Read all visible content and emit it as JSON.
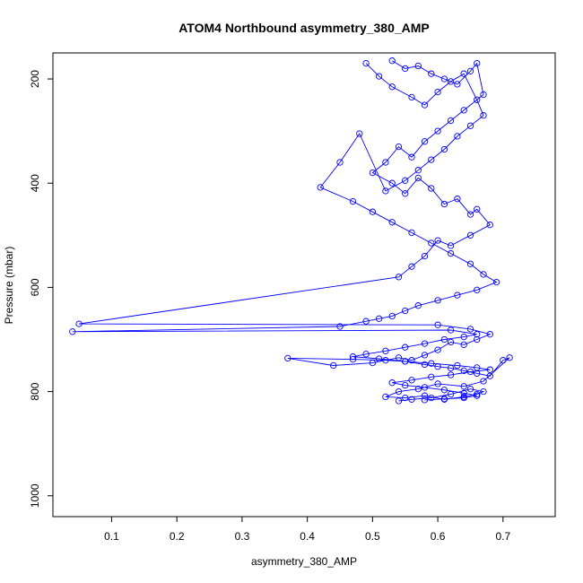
{
  "chart_data": {
    "type": "scatter",
    "title": "ATOM4 Northbound asymmetry_380_AMP",
    "xlabel": "asymmetry_380_AMP",
    "ylabel": "Pressure (mbar)",
    "xlim": [
      0.01,
      0.78
    ],
    "ylim": [
      1040,
      150
    ],
    "y_axis_inverted": true,
    "x_ticks": [
      0.1,
      0.2,
      0.3,
      0.4,
      0.5,
      0.6,
      0.7
    ],
    "x_tick_labels": [
      "0.1",
      "0.2",
      "0.3",
      "0.4",
      "0.5",
      "0.6",
      "0.7"
    ],
    "y_ticks": [
      200,
      400,
      600,
      800,
      1000
    ],
    "y_tick_labels": [
      "200",
      "400",
      "600",
      "800",
      "1000"
    ],
    "grid": false,
    "legend": "none",
    "marker": "open-circle",
    "connected": true,
    "color": "#0000ff",
    "series": [
      {
        "x": [
          0.53,
          0.55,
          0.57,
          0.59,
          0.61,
          0.63,
          0.65,
          0.66,
          0.67,
          0.64,
          0.62,
          0.6,
          0.58,
          0.56,
          0.54,
          0.52,
          0.5,
          0.53,
          0.55,
          0.57,
          0.59,
          0.61,
          0.63,
          0.65,
          0.66,
          0.68,
          0.65,
          0.62,
          0.6,
          0.58,
          0.56,
          0.54,
          0.05,
          0.6,
          0.65,
          0.68,
          0.66,
          0.64,
          0.62,
          0.6,
          0.58,
          0.56,
          0.54,
          0.5,
          0.44,
          0.37,
          0.47,
          0.52,
          0.55,
          0.58,
          0.6,
          0.62,
          0.64,
          0.66,
          0.68,
          0.7,
          0.71,
          0.67,
          0.64,
          0.6,
          0.57,
          0.54,
          0.52,
          0.55,
          0.58,
          0.61,
          0.64,
          0.66,
          0.67,
          0.65,
          0.62,
          0.59,
          0.56,
          0.54
        ],
        "y": [
          165,
          180,
          175,
          190,
          200,
          210,
          185,
          170,
          230,
          260,
          280,
          300,
          320,
          350,
          330,
          360,
          380,
          400,
          420,
          390,
          410,
          440,
          430,
          460,
          450,
          480,
          500,
          520,
          510,
          540,
          560,
          580,
          670,
          672,
          680,
          690,
          700,
          710,
          705,
          720,
          730,
          740,
          735,
          745,
          750,
          736,
          738,
          740,
          742,
          748,
          752,
          755,
          760,
          765,
          770,
          740,
          735,
          780,
          790,
          785,
          795,
          800,
          810,
          812,
          808,
          815,
          810,
          805,
          800,
          795,
          805,
          812,
          815,
          818
        ]
      },
      {
        "x": [
          0.49,
          0.51,
          0.53,
          0.56,
          0.58,
          0.6,
          0.62,
          0.64,
          0.66,
          0.67,
          0.65,
          0.63,
          0.61,
          0.59,
          0.57,
          0.55,
          0.52,
          0.48,
          0.45,
          0.42,
          0.47,
          0.5,
          0.53,
          0.56,
          0.59,
          0.62,
          0.65,
          0.67,
          0.69,
          0.66,
          0.63,
          0.6,
          0.57,
          0.55,
          0.53,
          0.51,
          0.49,
          0.45,
          0.04,
          0.62,
          0.66,
          0.64,
          0.61,
          0.58,
          0.55,
          0.52,
          0.49,
          0.47,
          0.51,
          0.55,
          0.59,
          0.63,
          0.66,
          0.68,
          0.65,
          0.62,
          0.59,
          0.56,
          0.53,
          0.55,
          0.58,
          0.61,
          0.64,
          0.66,
          0.64,
          0.61,
          0.58
        ],
        "y": [
          170,
          195,
          215,
          235,
          250,
          225,
          205,
          190,
          240,
          270,
          290,
          310,
          335,
          355,
          375,
          395,
          415,
          305,
          360,
          408,
          435,
          455,
          475,
          495,
          515,
          535,
          555,
          575,
          590,
          605,
          615,
          625,
          635,
          645,
          655,
          660,
          665,
          675,
          685,
          682,
          690,
          695,
          700,
          708,
          715,
          722,
          728,
          733,
          737,
          742,
          746,
          750,
          754,
          758,
          762,
          768,
          772,
          778,
          783,
          788,
          792,
          797,
          803,
          808,
          812,
          814,
          816
        ]
      }
    ]
  }
}
